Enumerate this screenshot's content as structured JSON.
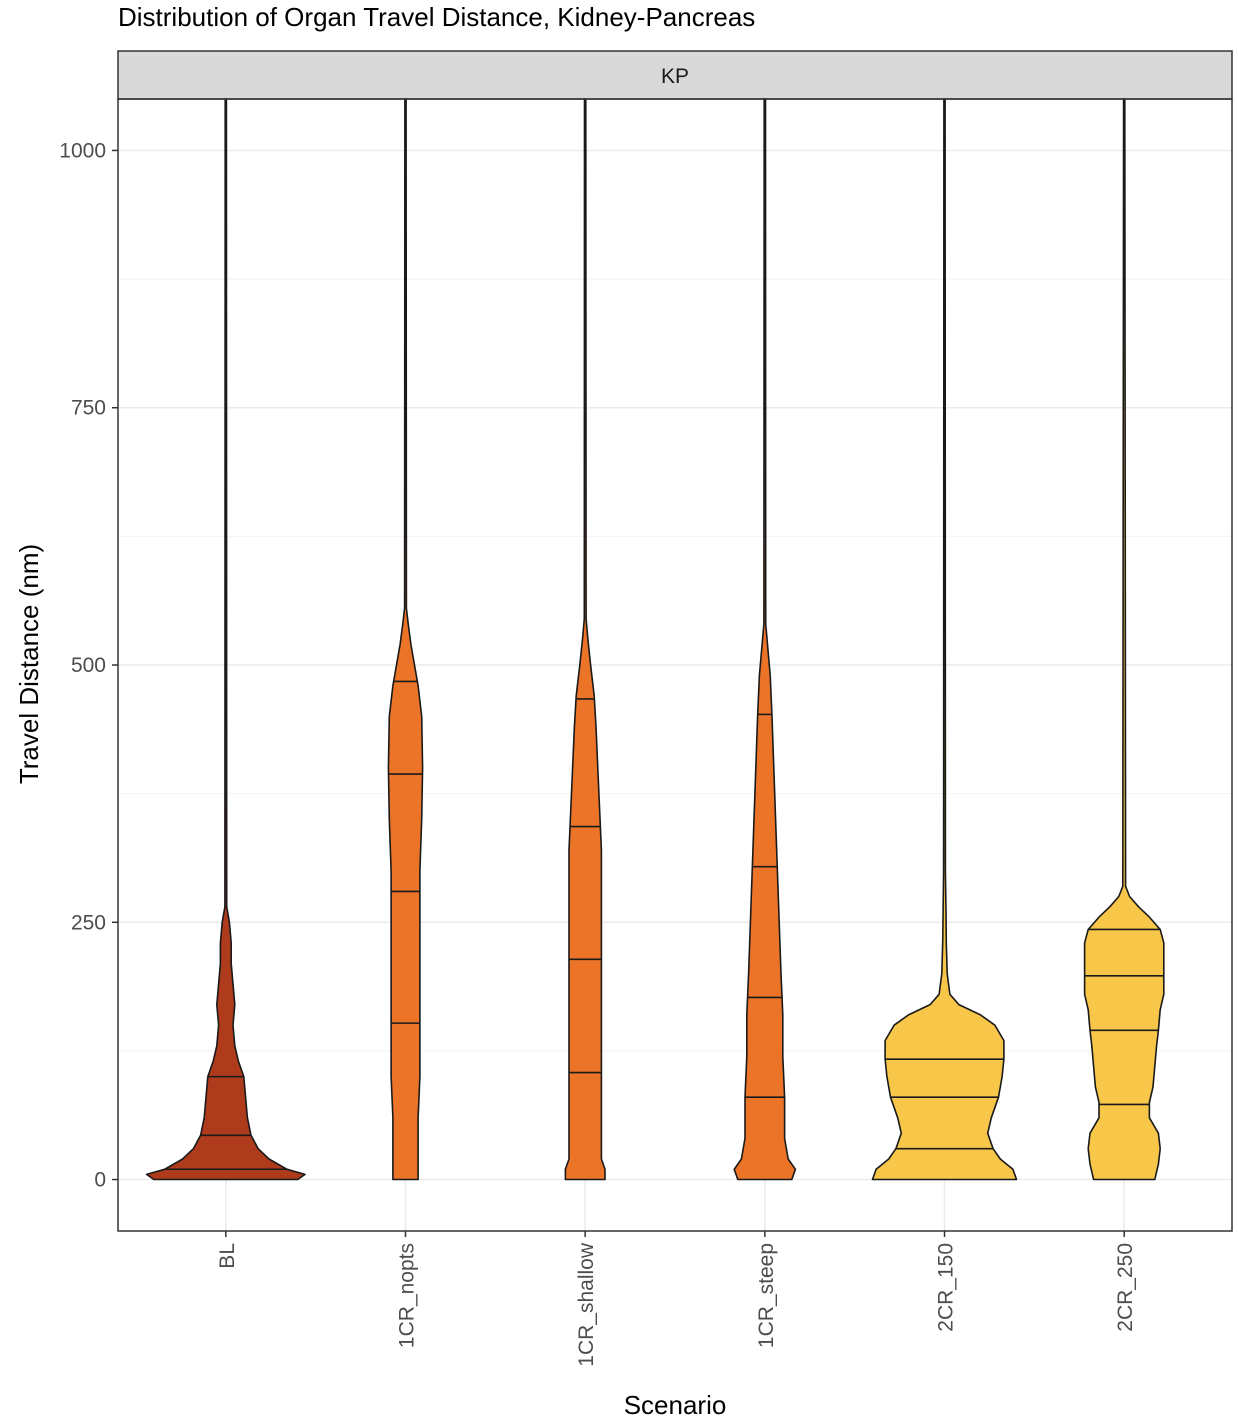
{
  "chart_data": {
    "type": "violin",
    "title": "Distribution of Organ Travel Distance, Kidney-Pancreas",
    "facet_label": "KP",
    "xlabel": "Scenario",
    "ylabel": "Travel Distance (nm)",
    "ylim": [
      -50,
      1050
    ],
    "yticks": [
      0,
      250,
      500,
      750,
      1000
    ],
    "grid": true,
    "categories": [
      "BL",
      "1CR_nopts",
      "1CR_shallow",
      "1CR_steep",
      "2CR_150",
      "2CR_250"
    ],
    "fills": [
      "#ae3b1b",
      "#ec7428",
      "#ec7428",
      "#ec7428",
      "#f8c649",
      "#f8c649"
    ],
    "max": [
      1050,
      1050,
      1050,
      1050,
      1050,
      1050
    ],
    "quantiles": [
      [
        10,
        43,
        100
      ],
      [
        152,
        280,
        394,
        484
      ],
      [
        104,
        214,
        343,
        467
      ],
      [
        80,
        177,
        304,
        452
      ],
      [
        30,
        80,
        117
      ],
      [
        73,
        145,
        198,
        243
      ]
    ],
    "density_profiles": [
      [
        [
          0,
          40
        ],
        [
          5,
          44
        ],
        [
          10,
          34
        ],
        [
          20,
          24
        ],
        [
          30,
          18
        ],
        [
          43,
          14
        ],
        [
          60,
          12
        ],
        [
          80,
          11
        ],
        [
          100,
          10
        ],
        [
          115,
          7
        ],
        [
          130,
          5
        ],
        [
          150,
          4
        ],
        [
          170,
          5
        ],
        [
          190,
          4
        ],
        [
          210,
          3
        ],
        [
          230,
          3
        ],
        [
          250,
          2
        ],
        [
          265,
          0.5
        ]
      ],
      [
        [
          0,
          7
        ],
        [
          30,
          7
        ],
        [
          60,
          7
        ],
        [
          100,
          8
        ],
        [
          150,
          8
        ],
        [
          200,
          8
        ],
        [
          250,
          8
        ],
        [
          300,
          8
        ],
        [
          350,
          9
        ],
        [
          400,
          9.5
        ],
        [
          450,
          9
        ],
        [
          480,
          7
        ],
        [
          500,
          5
        ],
        [
          520,
          3
        ],
        [
          540,
          1.5
        ],
        [
          555,
          0.5
        ]
      ],
      [
        [
          0,
          11
        ],
        [
          10,
          11
        ],
        [
          20,
          9
        ],
        [
          40,
          9
        ],
        [
          80,
          9
        ],
        [
          120,
          9
        ],
        [
          160,
          9
        ],
        [
          200,
          9
        ],
        [
          240,
          9
        ],
        [
          280,
          9
        ],
        [
          320,
          9
        ],
        [
          360,
          8
        ],
        [
          400,
          7
        ],
        [
          440,
          6
        ],
        [
          470,
          5
        ],
        [
          500,
          3
        ],
        [
          525,
          1.5
        ],
        [
          545,
          0.5
        ]
      ],
      [
        [
          0,
          15
        ],
        [
          10,
          17
        ],
        [
          20,
          13
        ],
        [
          40,
          11
        ],
        [
          80,
          11
        ],
        [
          120,
          10
        ],
        [
          160,
          10
        ],
        [
          200,
          9
        ],
        [
          250,
          8
        ],
        [
          300,
          7
        ],
        [
          350,
          6
        ],
        [
          400,
          5
        ],
        [
          450,
          4
        ],
        [
          490,
          3
        ],
        [
          520,
          1.5
        ],
        [
          540,
          0.5
        ]
      ],
      [
        [
          0,
          40
        ],
        [
          10,
          38
        ],
        [
          20,
          31
        ],
        [
          30,
          27
        ],
        [
          45,
          24
        ],
        [
          60,
          26
        ],
        [
          80,
          30
        ],
        [
          100,
          32
        ],
        [
          117,
          33
        ],
        [
          135,
          33
        ],
        [
          150,
          28
        ],
        [
          160,
          20
        ],
        [
          170,
          8
        ],
        [
          180,
          3
        ],
        [
          200,
          1.5
        ],
        [
          230,
          1
        ],
        [
          260,
          0.8
        ],
        [
          300,
          0.5
        ]
      ],
      [
        [
          0,
          17
        ],
        [
          15,
          19
        ],
        [
          30,
          20
        ],
        [
          45,
          19
        ],
        [
          60,
          14
        ],
        [
          75,
          14
        ],
        [
          90,
          16
        ],
        [
          110,
          17
        ],
        [
          130,
          18
        ],
        [
          145,
          19
        ],
        [
          165,
          20
        ],
        [
          180,
          22
        ],
        [
          198,
          22
        ],
        [
          215,
          22
        ],
        [
          230,
          22
        ],
        [
          243,
          20
        ],
        [
          255,
          14
        ],
        [
          265,
          8
        ],
        [
          275,
          3
        ],
        [
          285,
          0.8
        ]
      ]
    ]
  }
}
